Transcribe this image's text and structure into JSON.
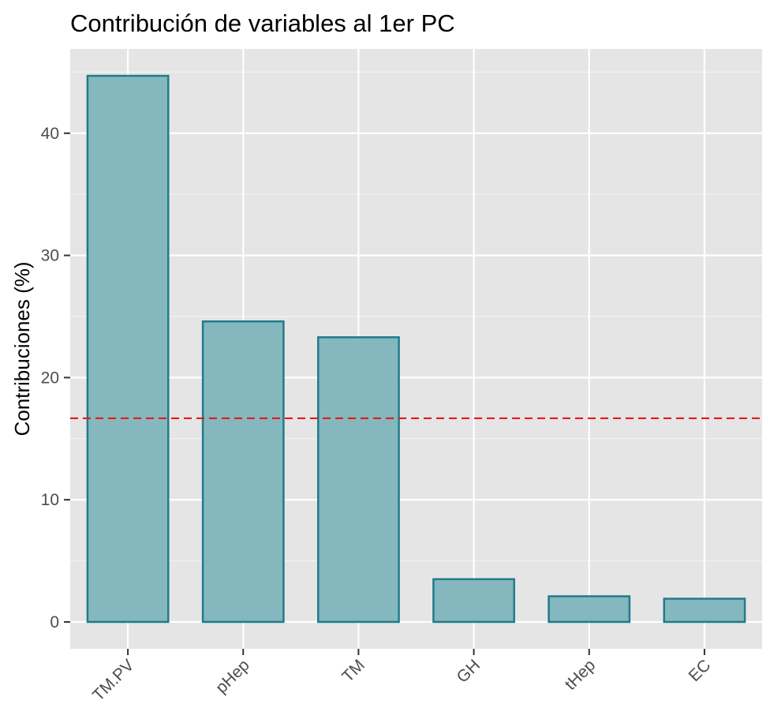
{
  "chart_data": {
    "type": "bar",
    "title": "Contribución de variables al 1er PC",
    "xlabel": "",
    "ylabel": "Contribuciones (%)",
    "categories": [
      "TM.PV",
      "pHep",
      "TM",
      "GH",
      "tHep",
      "EC"
    ],
    "values": [
      44.7,
      24.6,
      23.3,
      3.5,
      2.1,
      1.9
    ],
    "ylim": [
      -2.2,
      46.9
    ],
    "yticks": [
      0,
      10,
      20,
      30,
      40
    ],
    "reference_line": {
      "y": 16.67,
      "style": "dashed",
      "color": "#e31a1c"
    },
    "bar_fill": "#84b8be",
    "bar_stroke": "#217b8a",
    "panel_background": "#e5e5e5",
    "grid": true,
    "legend": "none"
  }
}
